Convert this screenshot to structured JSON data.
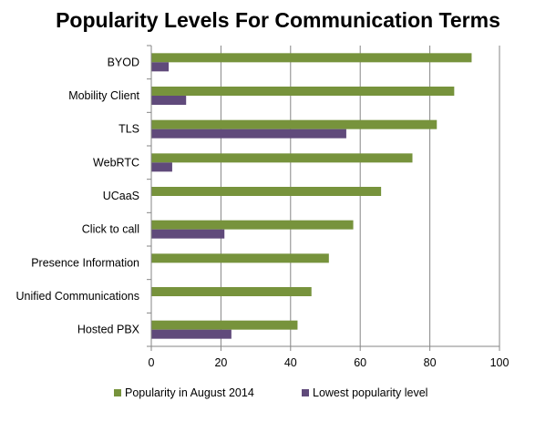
{
  "chart_data": {
    "type": "bar",
    "orientation": "horizontal",
    "title": "Popularity Levels For Communication Terms",
    "xlabel": "",
    "ylabel": "",
    "xlim": [
      0,
      100
    ],
    "x_ticks": [
      0,
      20,
      40,
      60,
      80,
      100
    ],
    "grid": true,
    "legend_position": "bottom",
    "categories": [
      "BYOD",
      "Mobility Client",
      "TLS",
      "WebRTC",
      "UCaaS",
      "Click to call",
      "Presence Information",
      "Unified Communications",
      "Hosted  PBX"
    ],
    "series": [
      {
        "name": "Popularity in August 2014",
        "color": "#77933C",
        "values": [
          92,
          87,
          82,
          75,
          66,
          58,
          51,
          46,
          42
        ]
      },
      {
        "name": "Lowest popularity level",
        "color": "#604A7B",
        "values": [
          5,
          10,
          56,
          6,
          0,
          21,
          0,
          0,
          23
        ]
      }
    ]
  }
}
